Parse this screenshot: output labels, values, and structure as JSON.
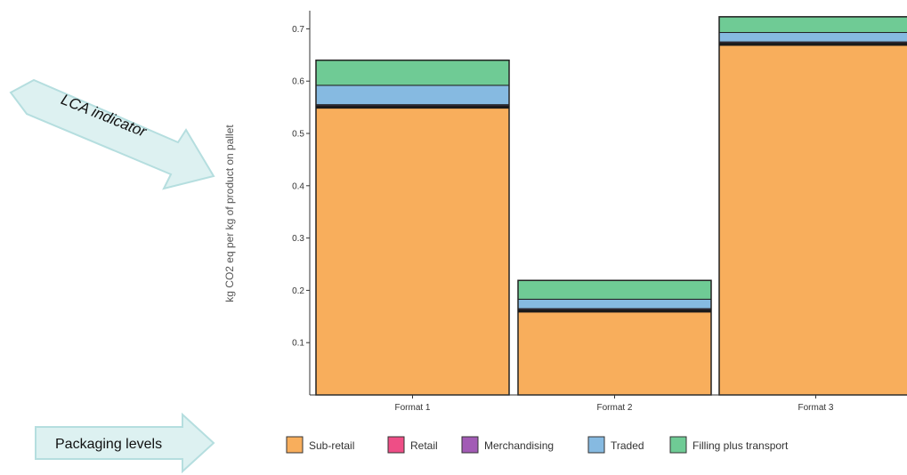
{
  "annotations": {
    "lca_indicator": "LCA indicator",
    "packaging_levels": "Packaging levels"
  },
  "colors": {
    "Sub-retail": "#F8AE5C",
    "Retail": "#EE4E86",
    "Merchandising": "#A25BB5",
    "Traded": "#86BAE1",
    "Filling plus transport": "#6FCB95",
    "arrow_fill": "#DDF1F1",
    "arrow_stroke": "#B5DEDF"
  },
  "chart_data": {
    "type": "bar",
    "stacked": true,
    "categories": [
      "Format 1",
      "Format 2",
      "Format 3"
    ],
    "ylabel": "kg CO2 eq per kg of product on pallet",
    "xlabel": "",
    "title": "",
    "ylim": [
      0,
      0.73
    ],
    "yticks": [
      0.1,
      0.2,
      0.3,
      0.4,
      0.5,
      0.6,
      0.7
    ],
    "ytick_labels": [
      "0.1",
      "0.2",
      "0.3",
      "0.4",
      "0.5",
      "0.6",
      "0.7"
    ],
    "grid": false,
    "legend_position": "bottom",
    "series": [
      {
        "name": "Sub-retail",
        "values": [
          0.55,
          0.16,
          0.67
        ]
      },
      {
        "name": "Retail",
        "values": [
          0.003,
          0.003,
          0.003
        ]
      },
      {
        "name": "Merchandising",
        "values": [
          0.002,
          0.002,
          0.002
        ]
      },
      {
        "name": "Traded",
        "values": [
          0.037,
          0.018,
          0.018
        ]
      },
      {
        "name": "Filling plus transport",
        "values": [
          0.048,
          0.036,
          0.03
        ]
      }
    ]
  }
}
